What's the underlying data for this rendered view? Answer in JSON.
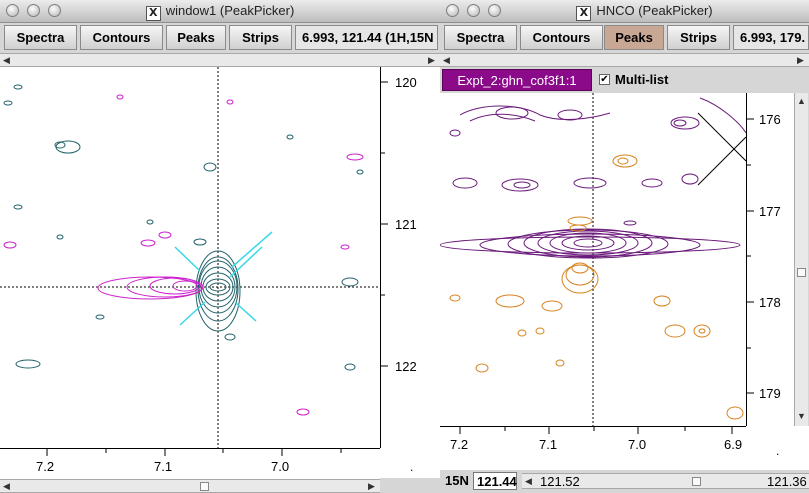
{
  "window1": {
    "title": "window1 (PeakPicker)",
    "toolbar": {
      "spectra": "Spectra",
      "contours": "Contours",
      "peaks": "Peaks",
      "strips": "Strips"
    },
    "coords": "6.993, 121.44 (1H,15N",
    "y_ticks": [
      "120",
      "121",
      "122"
    ],
    "x_ticks": [
      "7.2",
      "7.1",
      "7.0"
    ],
    "corner": "."
  },
  "window2": {
    "title": "HNCO (PeakPicker)",
    "toolbar": {
      "spectra": "Spectra",
      "contours": "Contours",
      "peaks": "Peaks",
      "strips": "Strips"
    },
    "coords": "6.993, 179.",
    "peak_list": "Expt_2:ghn_cof3f1:1",
    "multi_list_label": "Multi-list",
    "multi_list_checked": "✔",
    "y_ticks": [
      "176",
      "177",
      "178",
      "179"
    ],
    "x_ticks": [
      "7.2",
      "7.1",
      "7.0",
      "6.9"
    ],
    "corner": ".",
    "status": {
      "axis": "15N",
      "value": "121.44",
      "low": "121.52",
      "high": "121.36"
    }
  },
  "colors": {
    "contour_teal": "#23646a",
    "contour_magenta": "#cc22cc",
    "contour_cyan": "#38d8e8",
    "contour_purple": "#6a1a7a",
    "contour_orange": "#d8821e",
    "peaks_active": "#c9a795",
    "list_bg": "#8a0a8a"
  },
  "icons": {
    "window_icon": "x11-logo-icon",
    "traffic_lights": "window-control-icon"
  }
}
